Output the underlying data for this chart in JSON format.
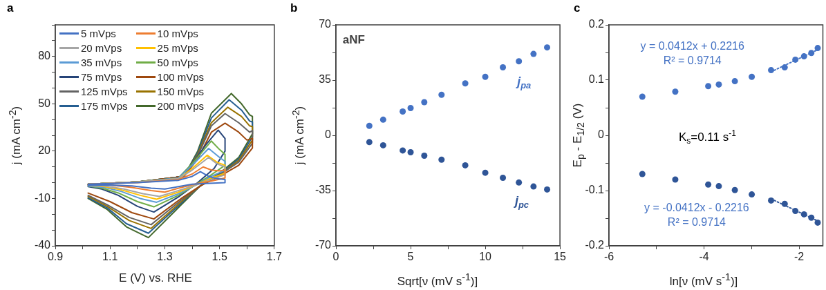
{
  "chart_data": [
    {
      "type": "line",
      "title": "a",
      "xlabel": "E (V) vs. RHE",
      "ylabel": "j (mA cm$^{-2}$)",
      "legend": "top left",
      "xlim": [
        0.9,
        1.7
      ],
      "xticks": [
        0.9,
        {
          "value": 1.0,
          "label": null
        },
        1.1,
        {
          "value": 1.2,
          "label": null
        },
        1.3,
        {
          "value": 1.4,
          "label": null
        },
        1.5,
        {
          "value": 1.6,
          "label": null
        },
        1.7
      ],
      "ylim": [
        -40,
        100
      ],
      "yticks": [
        -40,
        {
          "value": -30,
          "label": null
        },
        {
          "value": -20,
          "label": null
        },
        -10,
        {
          "value": 0,
          "label": null
        },
        {
          "value": 10,
          "label": null
        },
        20,
        {
          "value": 30,
          "label": null
        },
        {
          "value": 40,
          "label": null
        },
        50,
        {
          "value": 60,
          "label": null
        },
        {
          "value": 70,
          "label": null
        },
        80,
        {
          "value": 90,
          "label": null
        },
        {
          "value": 100,
          "label": null
        }
      ],
      "series": [
        {
          "name": "5 mVps",
          "color": "#4472c4",
          "x": [
            1.02,
            1.2,
            1.35,
            1.4,
            1.43,
            1.46,
            1.49,
            1.52,
            1.52,
            1.45,
            1.4,
            1.35,
            1.3,
            1.25,
            1.18,
            1.1,
            1.02
          ],
          "values": [
            -1,
            0,
            1.5,
            4,
            7,
            4,
            2.5,
            2,
            0,
            -0.5,
            -1,
            -2.5,
            -4,
            -3.5,
            -2,
            -1.5,
            -1.5
          ]
        },
        {
          "name": "10 mVps",
          "color": "#ed7d31",
          "x": [
            1.02,
            1.2,
            1.35,
            1.4,
            1.44,
            1.47,
            1.5,
            1.52,
            1.52,
            1.47,
            1.42,
            1.36,
            1.3,
            1.25,
            1.18,
            1.1,
            1.02
          ],
          "values": [
            -1,
            0,
            2,
            5.5,
            10,
            8,
            7.5,
            8,
            3,
            1,
            -0.5,
            -3,
            -6,
            -5,
            -3,
            -1.5,
            -1.5
          ]
        },
        {
          "name": "20 mVps",
          "color": "#a5a5a5",
          "x": [
            1.02,
            1.2,
            1.35,
            1.4,
            1.46,
            1.49,
            1.52,
            1.52,
            1.47,
            1.42,
            1.35,
            1.28,
            1.22,
            1.15,
            1.08,
            1.02
          ],
          "values": [
            -1,
            0.5,
            2.5,
            8,
            16,
            12,
            10,
            5,
            2,
            -1,
            -5,
            -8.7,
            -7,
            -4,
            -2,
            -1.5
          ]
        },
        {
          "name": "25 mVps",
          "color": "#ffc000",
          "x": [
            1.02,
            1.2,
            1.35,
            1.4,
            1.455,
            1.49,
            1.52,
            1.52,
            1.47,
            1.42,
            1.35,
            1.27,
            1.21,
            1.14,
            1.08,
            1.02
          ],
          "values": [
            -1,
            0.5,
            2.5,
            9,
            17.4,
            13,
            11,
            6,
            3,
            -1,
            -6,
            -10.5,
            -8,
            -4.5,
            -2.5,
            -1.5
          ]
        },
        {
          "name": "35 mVps",
          "color": "#5b9bd5",
          "x": [
            1.02,
            1.2,
            1.35,
            1.4,
            1.46,
            1.5,
            1.52,
            1.52,
            1.47,
            1.42,
            1.35,
            1.27,
            1.21,
            1.14,
            1.08,
            1.02
          ],
          "values": [
            -1,
            0.5,
            3,
            11,
            21.7,
            16,
            13.5,
            8,
            4,
            -1,
            -7,
            -12.4,
            -10,
            -5.5,
            -3,
            -2
          ]
        },
        {
          "name": "50 mVps",
          "color": "#70ad47",
          "x": [
            1.02,
            1.2,
            1.35,
            1.4,
            1.47,
            1.5,
            1.52,
            1.52,
            1.47,
            1.42,
            1.35,
            1.26,
            1.2,
            1.13,
            1.07,
            1.02
          ],
          "values": [
            -1,
            0.5,
            3,
            12,
            26.4,
            21,
            18,
            11,
            5,
            -0.5,
            -8,
            -15.3,
            -12,
            -6.5,
            -3.5,
            -2
          ]
        },
        {
          "name": "75 mVps",
          "color": "#264478",
          "x": [
            1.02,
            1.2,
            1.35,
            1.4,
            1.45,
            1.495,
            1.52,
            1.52,
            1.48,
            1.42,
            1.35,
            1.26,
            1.2,
            1.13,
            1.07,
            1.02
          ],
          "values": [
            -1,
            0.5,
            3,
            12,
            24,
            33.3,
            28,
            20,
            9,
            0,
            -9,
            -18.6,
            -15,
            -8,
            -4,
            -2.5
          ]
        },
        {
          "name": "100 mVps",
          "color": "#9e480e",
          "x": [
            1.02,
            1.2,
            1.37,
            1.42,
            1.47,
            1.52,
            1.57,
            1.6,
            1.62,
            1.62,
            1.57,
            1.5,
            1.43,
            1.36,
            1.26,
            1.18,
            1.1,
            1.02
          ],
          "values": [
            -1,
            0.5,
            4,
            15,
            32,
            37.7,
            32,
            27,
            28,
            22,
            11,
            4,
            -2,
            -10,
            -23,
            -19,
            -12,
            -6.6
          ]
        },
        {
          "name": "125 mVps",
          "color": "#636363",
          "x": [
            1.02,
            1.2,
            1.37,
            1.42,
            1.47,
            1.52,
            1.57,
            1.61,
            1.62,
            1.62,
            1.57,
            1.5,
            1.43,
            1.36,
            1.25,
            1.17,
            1.09,
            1.02
          ],
          "values": [
            -1,
            0.5,
            4,
            17,
            36,
            43.8,
            38,
            32,
            33,
            25,
            13,
            5,
            -2,
            -11,
            -26.6,
            -22,
            -14,
            -8
          ]
        },
        {
          "name": "150 mVps",
          "color": "#997300",
          "x": [
            1.02,
            1.2,
            1.37,
            1.42,
            1.47,
            1.53,
            1.58,
            1.61,
            1.62,
            1.62,
            1.57,
            1.5,
            1.43,
            1.36,
            1.25,
            1.17,
            1.09,
            1.02
          ],
          "values": [
            -1,
            0.5,
            4,
            18,
            38,
            47.8,
            42,
            36,
            35.5,
            27,
            14,
            5,
            -2,
            -12,
            -29,
            -24,
            -15,
            -8.7
          ]
        },
        {
          "name": "175 mVps",
          "color": "#255e91",
          "x": [
            1.02,
            1.2,
            1.37,
            1.42,
            1.47,
            1.535,
            1.58,
            1.61,
            1.62,
            1.62,
            1.57,
            1.5,
            1.43,
            1.36,
            1.24,
            1.16,
            1.09,
            1.02
          ],
          "values": [
            -1,
            0.5,
            4,
            19,
            41,
            52.5,
            46,
            39,
            38.4,
            29,
            15,
            5.5,
            -2,
            -13,
            -32,
            -26,
            -16,
            -9.5
          ]
        },
        {
          "name": "200 mVps",
          "color": "#43682b",
          "x": [
            1.02,
            1.2,
            1.37,
            1.42,
            1.47,
            1.543,
            1.58,
            1.61,
            1.62,
            1.62,
            1.57,
            1.5,
            1.43,
            1.36,
            1.24,
            1.16,
            1.09,
            1.02
          ],
          "values": [
            -1,
            0.5,
            4,
            20,
            44,
            56.5,
            50,
            43,
            42,
            31,
            16,
            6,
            -2,
            -14,
            -34.8,
            -28,
            -17,
            -10
          ]
        }
      ]
    },
    {
      "type": "scatter",
      "title": "b",
      "xlabel": "Sqrt[ν (mV s$^{-1}$)]",
      "ylabel": "j (mA cm$^{-2}$)",
      "marker": "circle",
      "annotations": [
        "aNF"
      ],
      "xlim": [
        0,
        15
      ],
      "xticks": [
        0,
        {
          "value": 2.5,
          "label": null
        },
        5,
        {
          "value": 7.5,
          "label": null
        },
        10,
        {
          "value": 12.5,
          "label": null
        },
        15
      ],
      "ylim": [
        -70,
        70
      ],
      "yticks": [
        -70,
        {
          "value": -52.5,
          "label": null
        },
        -35,
        {
          "value": -17.5,
          "label": null
        },
        0,
        {
          "value": 17.5,
          "label": null
        },
        35,
        {
          "value": 52.5,
          "label": null
        },
        70
      ],
      "x": [
        2.236,
        3.162,
        4.472,
        5,
        5.916,
        7.071,
        8.66,
        10,
        11.18,
        12.25,
        13.23,
        14.14
      ],
      "series": [
        {
          "name": "j$_{pa}$",
          "color": "#4472c4",
          "values": [
            6.0,
            9.9,
            15.1,
            17.3,
            21,
            25.7,
            32.9,
            37.1,
            43.1,
            46.9,
            51.6,
            55.7
          ]
        },
        {
          "name": "j$_{pc}$",
          "color": "#2f5597",
          "values": [
            -4.3,
            -6.3,
            -9.6,
            -10.7,
            -12.9,
            -15.4,
            -19,
            -23.7,
            -26.9,
            -29.9,
            -32.4,
            -34.3
          ]
        }
      ]
    },
    {
      "type": "scatter",
      "title": "c",
      "xlabel": "ln[ν (mV s$^{-1}$)]",
      "ylabel": "E$_{p}$ - E$_{1/2}$ (V)",
      "marker": "circle",
      "annotations": [
        "y = 0.0412x + 0.2216",
        "R² = 0.9714",
        "K$_{s}$=0.11 s$^{-1}$",
        "y = -0.0412x - 0.2216",
        "R² = 0.9714"
      ],
      "xlim": [
        -6,
        -1.5
      ],
      "xticks": [
        -6,
        {
          "value": -5,
          "label": null
        },
        -4,
        {
          "value": -3,
          "label": null
        },
        -2
      ],
      "ylim": [
        -0.2,
        0.2
      ],
      "yticks": [
        -0.2,
        {
          "value": -0.15,
          "label": null
        },
        -0.1,
        {
          "value": -0.05,
          "label": null
        },
        0,
        {
          "value": 0.05,
          "label": null
        },
        0.1,
        {
          "value": 0.15,
          "label": null
        },
        0.2
      ],
      "x": [
        -5.298,
        -4.605,
        -3.912,
        -3.689,
        -3.352,
        -2.996,
        -2.59,
        -2.303,
        -2.079,
        -1.897,
        -1.743,
        -1.609
      ],
      "series": [
        {
          "color": "#4472c4",
          "values": [
            0.07,
            0.079,
            0.089,
            0.092,
            0.098,
            0.106,
            0.118,
            0.123,
            0.137,
            0.143,
            0.149,
            0.158
          ]
        },
        {
          "color": "#2f5597",
          "values": [
            -0.07,
            -0.08,
            -0.089,
            -0.092,
            -0.099,
            -0.107,
            -0.118,
            -0.124,
            -0.137,
            -0.143,
            -0.149,
            -0.158
          ]
        },
        {
          "type": "line",
          "color": "#4472c4",
          "marker": "none",
          "line_style": "dotted",
          "x": [
            -2.59,
            -1.609
          ],
          "values": [
            0.115,
            0.155
          ]
        },
        {
          "type": "line",
          "color": "#2f5597",
          "marker": "none",
          "line_style": "dotted",
          "x": [
            -2.59,
            -1.609
          ],
          "values": [
            -0.115,
            -0.155
          ]
        }
      ]
    }
  ]
}
